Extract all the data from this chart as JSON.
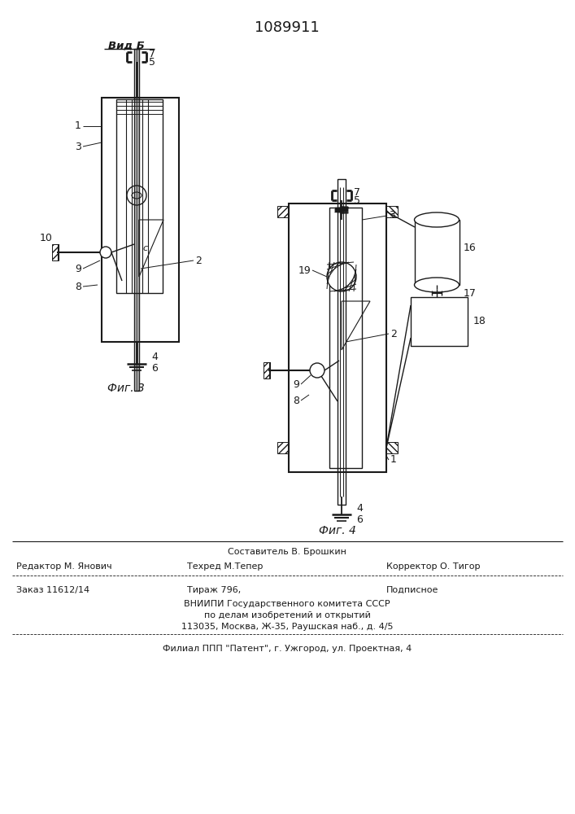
{
  "patent_number": "1089911",
  "bg_color": "#ffffff",
  "text_color": "#1a1a1a",
  "fig3_label": "Фиг. 3",
  "fig4_label": "Фиг. 4",
  "vid_b_label": "Вид Б",
  "editor_line": "Редактор М. Янович",
  "compiler_label": "Составитель В. Брошкин",
  "techred_line": "Техред М.Тепер",
  "corrector_line": "Корректор О. Тигор",
  "order_line": "Заказ 11612/14",
  "tirazh_line": "Тираж 796,",
  "podp_line": "Подписное",
  "vniiipi_line1": "ВНИИПИ Государственного комитета СССР",
  "vniiipi_line2": "по делам изобретений и открытий",
  "vniiipi_line3": "113035, Москва, Ж-35, Раушская наб., д. 4/5",
  "filial_line": "Филиал ППП \"Патент\", г. Ужгород, ул. Проектная, 4"
}
